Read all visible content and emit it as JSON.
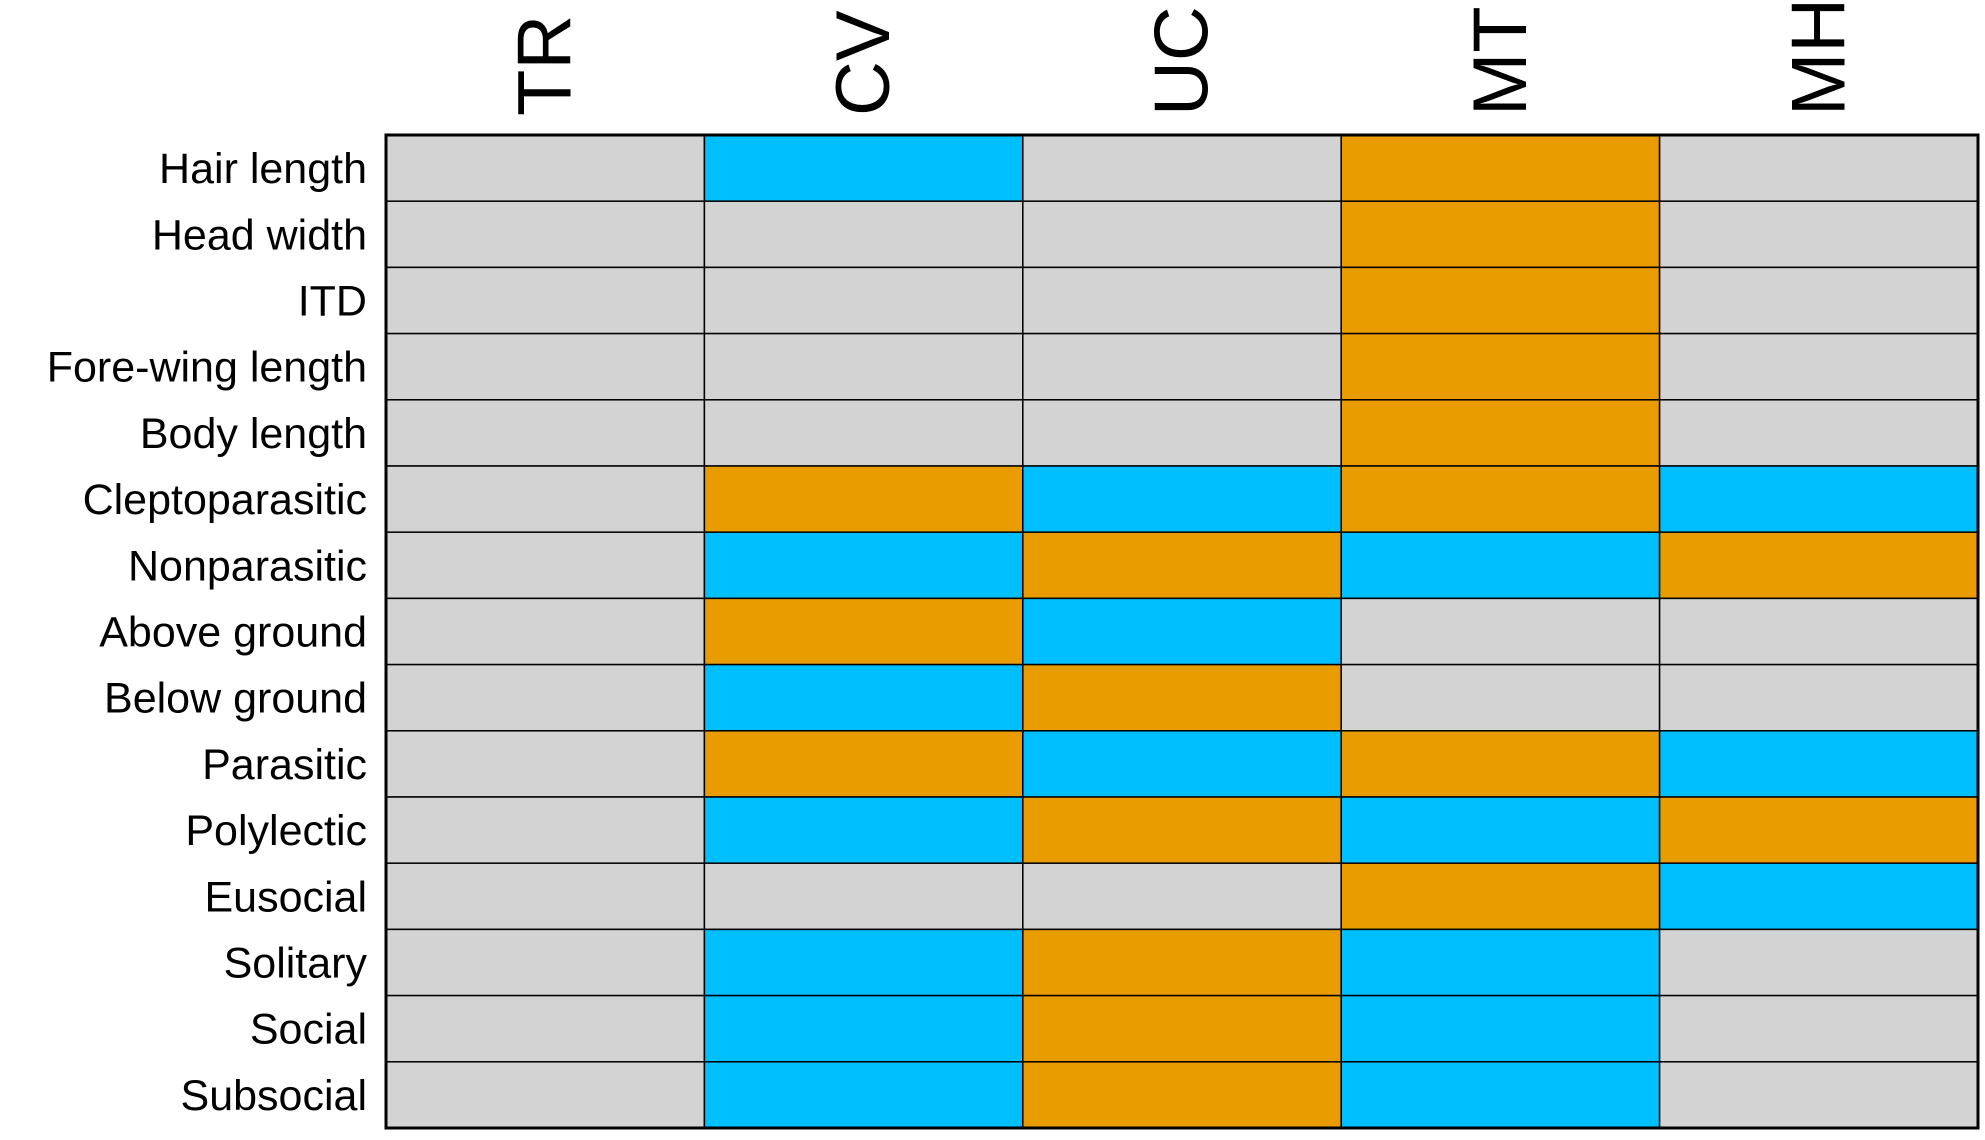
{
  "chart_data": {
    "type": "heatmap",
    "columns": [
      "TR",
      "CV",
      "UC",
      "MT",
      "MH"
    ],
    "rows": [
      "Hair length",
      "Head width",
      "ITD",
      "Fore-wing length",
      "Body length",
      "Cleptoparasitic",
      "Nonparasitic",
      "Above ground",
      "Below ground",
      "Parasitic",
      "Polylectic",
      "Eusocial",
      "Solitary",
      "Social",
      "Subsocial"
    ],
    "colors": {
      "grey": "#d3d3d3",
      "blue": "#00bfff",
      "orange": "#e89c00",
      "border": "#000000"
    },
    "cells": [
      [
        "grey",
        "blue",
        "grey",
        "orange",
        "grey"
      ],
      [
        "grey",
        "grey",
        "grey",
        "orange",
        "grey"
      ],
      [
        "grey",
        "grey",
        "grey",
        "orange",
        "grey"
      ],
      [
        "grey",
        "grey",
        "grey",
        "orange",
        "grey"
      ],
      [
        "grey",
        "grey",
        "grey",
        "orange",
        "grey"
      ],
      [
        "grey",
        "orange",
        "blue",
        "orange",
        "blue"
      ],
      [
        "grey",
        "blue",
        "orange",
        "blue",
        "orange"
      ],
      [
        "grey",
        "orange",
        "blue",
        "grey",
        "grey"
      ],
      [
        "grey",
        "blue",
        "orange",
        "grey",
        "grey"
      ],
      [
        "grey",
        "orange",
        "blue",
        "orange",
        "blue"
      ],
      [
        "grey",
        "blue",
        "orange",
        "blue",
        "orange"
      ],
      [
        "grey",
        "grey",
        "grey",
        "orange",
        "blue"
      ],
      [
        "grey",
        "blue",
        "orange",
        "blue",
        "grey"
      ],
      [
        "grey",
        "blue",
        "orange",
        "blue",
        "grey"
      ],
      [
        "grey",
        "blue",
        "orange",
        "blue",
        "grey"
      ]
    ]
  }
}
